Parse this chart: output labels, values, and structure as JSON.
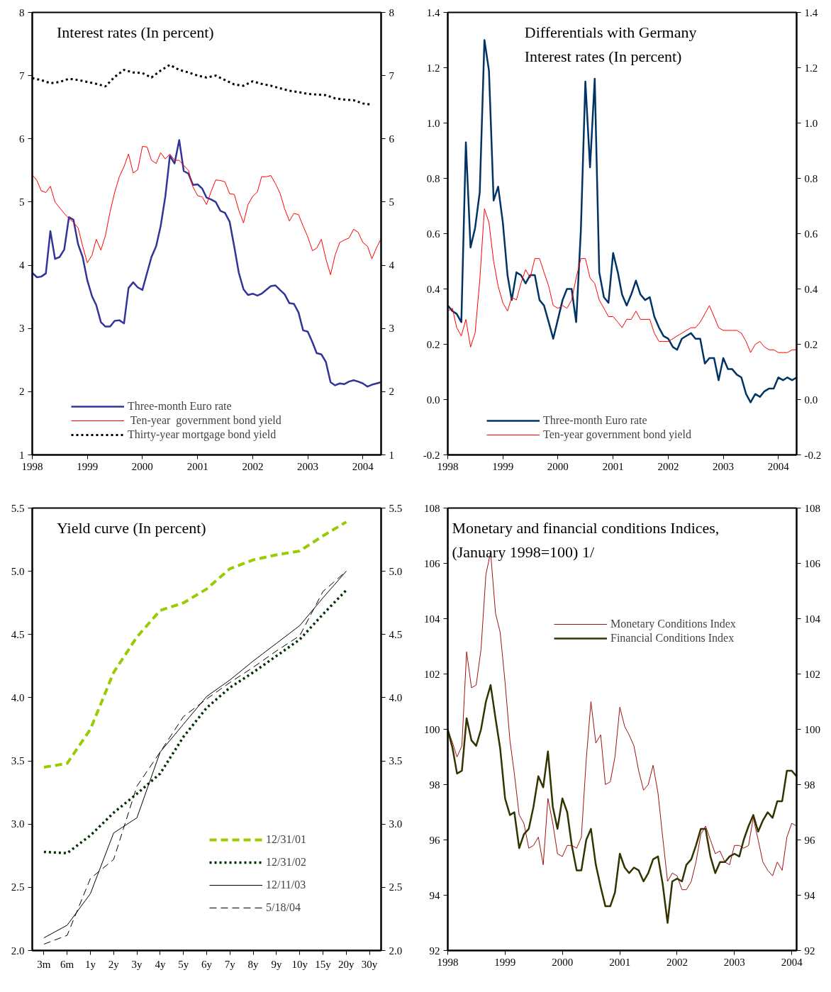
{
  "chart_data": [
    {
      "type": "line",
      "title": "Interest rates  (In percent)",
      "legend": "bottom",
      "x": [
        "1998-01",
        "1998-02",
        "1998-03",
        "1998-04",
        "1998-05",
        "1998-06",
        "1998-07",
        "1998-08",
        "1998-09",
        "1998-10",
        "1998-11",
        "1998-12",
        "1999-01",
        "1999-02",
        "1999-03",
        "1999-04",
        "1999-05",
        "1999-06",
        "1999-07",
        "1999-08",
        "1999-09",
        "1999-10",
        "1999-11",
        "1999-12",
        "2000-01",
        "2000-02",
        "2000-03",
        "2000-04",
        "2000-05",
        "2000-06",
        "2000-07",
        "2000-08",
        "2000-09",
        "2000-10",
        "2000-11",
        "2000-12",
        "2001-01",
        "2001-02",
        "2001-03",
        "2001-04",
        "2001-05",
        "2001-06",
        "2001-07",
        "2001-08",
        "2001-09",
        "2001-10",
        "2001-11",
        "2001-12",
        "2002-01",
        "2002-02",
        "2002-03",
        "2002-04",
        "2002-05",
        "2002-06",
        "2002-07",
        "2002-08",
        "2002-09",
        "2002-10",
        "2002-11",
        "2002-12",
        "2003-01",
        "2003-02",
        "2003-03",
        "2003-04",
        "2003-05",
        "2003-06",
        "2003-07",
        "2003-08",
        "2003-09",
        "2003-10",
        "2003-11",
        "2003-12",
        "2004-01",
        "2004-02",
        "2004-03",
        "2004-04",
        "2004-05"
      ],
      "series": [
        {
          "name": "Three-month Euro rate",
          "color": "#333399",
          "line_style": "solid",
          "values": [
            3.88,
            3.81,
            3.82,
            3.87,
            4.54,
            4.1,
            4.13,
            4.25,
            4.76,
            4.72,
            4.33,
            4.13,
            3.76,
            3.51,
            3.37,
            3.1,
            3.03,
            3.03,
            3.12,
            3.13,
            3.08,
            3.64,
            3.73,
            3.65,
            3.61,
            3.88,
            4.13,
            4.3,
            4.62,
            5.09,
            5.73,
            5.61,
            5.98,
            5.49,
            5.45,
            5.27,
            5.28,
            5.21,
            5.07,
            5.04,
            5.0,
            4.86,
            4.83,
            4.69,
            4.29,
            3.88,
            3.62,
            3.53,
            3.55,
            3.52,
            3.55,
            3.61,
            3.67,
            3.68,
            3.61,
            3.54,
            3.4,
            3.39,
            3.25,
            2.97,
            2.95,
            2.78,
            2.61,
            2.59,
            2.47,
            2.15,
            2.1,
            2.13,
            2.12,
            2.16,
            2.18,
            2.16,
            2.13,
            2.08,
            2.11,
            2.13,
            2.15
          ]
        },
        {
          "name": " Ten-year  government bond yield",
          "color": "#ff0000",
          "line_style": "solid",
          "values": [
            5.43,
            5.34,
            5.18,
            5.15,
            5.25,
            5.0,
            4.91,
            4.82,
            4.74,
            4.68,
            4.59,
            4.3,
            4.04,
            4.16,
            4.41,
            4.24,
            4.47,
            4.85,
            5.15,
            5.4,
            5.56,
            5.76,
            5.46,
            5.51,
            5.88,
            5.87,
            5.66,
            5.61,
            5.78,
            5.68,
            5.76,
            5.66,
            5.66,
            5.58,
            5.5,
            5.24,
            5.1,
            5.08,
            4.96,
            5.17,
            5.35,
            5.34,
            5.32,
            5.13,
            5.12,
            4.87,
            4.67,
            4.96,
            5.09,
            5.16,
            5.4,
            5.4,
            5.42,
            5.29,
            5.14,
            4.89,
            4.7,
            4.82,
            4.8,
            4.62,
            4.45,
            4.23,
            4.27,
            4.41,
            4.1,
            3.85,
            4.16,
            4.36,
            4.4,
            4.43,
            4.57,
            4.52,
            4.36,
            4.3,
            4.1,
            4.28,
            4.42
          ]
        },
        {
          "name": "Thirty-year mortgage bond yield",
          "color": "#000000",
          "line_style": "dotted",
          "x": [
            "1998-01",
            "1998-03",
            "1998-05",
            "1998-07",
            "1998-09",
            "1998-11",
            "1999-01",
            "1999-03",
            "1999-05",
            "1999-07",
            "1999-09",
            "1999-11",
            "2000-01",
            "2000-03",
            "2000-05",
            "2000-07",
            "2000-09",
            "2000-11",
            "2001-01",
            "2001-03",
            "2001-05",
            "2001-07",
            "2001-09",
            "2001-11",
            "2002-01",
            "2002-03",
            "2002-05",
            "2002-07",
            "2002-09",
            "2002-11",
            "2003-01",
            "2003-03",
            "2003-05",
            "2003-07",
            "2003-09",
            "2003-11",
            "2004-01",
            "2004-03"
          ],
          "values": [
            6.96,
            6.93,
            6.88,
            6.9,
            6.95,
            6.93,
            6.9,
            6.87,
            6.83,
            6.98,
            7.09,
            7.05,
            7.04,
            6.97,
            7.08,
            7.17,
            7.09,
            7.05,
            7.0,
            6.97,
            7.0,
            6.93,
            6.86,
            6.84,
            6.91,
            6.87,
            6.84,
            6.8,
            6.76,
            6.74,
            6.71,
            6.7,
            6.69,
            6.64,
            6.62,
            6.61,
            6.56,
            6.54
          ]
        }
      ],
      "xlim": [
        "1998-01",
        "2004-05"
      ],
      "xticks": [
        "1998",
        "1999",
        "2000",
        "2001",
        "2002",
        "2003",
        "2004"
      ],
      "ylim": [
        1,
        8
      ],
      "yticks": [
        1,
        2,
        3,
        4,
        5,
        6,
        7,
        8
      ],
      "y2lim": [
        1,
        8
      ],
      "y2ticks": [
        1,
        2,
        3,
        4,
        5,
        6,
        7,
        8
      ]
    },
    {
      "type": "line",
      "title": "Differentials with Germany",
      "subtitle": "Interest rates (In percent)",
      "legend": "bottom",
      "x": [
        "1998-01",
        "1998-02",
        "1998-03",
        "1998-04",
        "1998-05",
        "1998-06",
        "1998-07",
        "1998-08",
        "1998-09",
        "1998-10",
        "1998-11",
        "1998-12",
        "1999-01",
        "1999-02",
        "1999-03",
        "1999-04",
        "1999-05",
        "1999-06",
        "1999-07",
        "1999-08",
        "1999-09",
        "1999-10",
        "1999-11",
        "1999-12",
        "2000-01",
        "2000-02",
        "2000-03",
        "2000-04",
        "2000-05",
        "2000-06",
        "2000-07",
        "2000-08",
        "2000-09",
        "2000-10",
        "2000-11",
        "2000-12",
        "2001-01",
        "2001-02",
        "2001-03",
        "2001-04",
        "2001-05",
        "2001-06",
        "2001-07",
        "2001-08",
        "2001-09",
        "2001-10",
        "2001-11",
        "2001-12",
        "2002-01",
        "2002-02",
        "2002-03",
        "2002-04",
        "2002-05",
        "2002-06",
        "2002-07",
        "2002-08",
        "2002-09",
        "2002-10",
        "2002-11",
        "2002-12",
        "2003-01",
        "2003-02",
        "2003-03",
        "2003-04",
        "2003-05",
        "2003-06",
        "2003-07",
        "2003-08",
        "2003-09",
        "2003-10",
        "2003-11",
        "2003-12",
        "2004-01",
        "2004-02",
        "2004-03",
        "2004-04",
        "2004-05"
      ],
      "series": [
        {
          "name": "Three-month Euro rate",
          "color": "#003366",
          "line_style": "solid",
          "values": [
            0.34,
            0.32,
            0.31,
            0.28,
            0.93,
            0.55,
            0.62,
            0.75,
            1.3,
            1.19,
            0.72,
            0.77,
            0.64,
            0.45,
            0.36,
            0.46,
            0.45,
            0.42,
            0.45,
            0.45,
            0.36,
            0.34,
            0.28,
            0.22,
            0.29,
            0.36,
            0.4,
            0.4,
            0.28,
            0.61,
            1.15,
            0.84,
            1.16,
            0.46,
            0.37,
            0.35,
            0.53,
            0.46,
            0.38,
            0.34,
            0.38,
            0.43,
            0.38,
            0.36,
            0.37,
            0.3,
            0.26,
            0.23,
            0.22,
            0.19,
            0.18,
            0.22,
            0.23,
            0.24,
            0.22,
            0.22,
            0.13,
            0.15,
            0.15,
            0.07,
            0.15,
            0.11,
            0.11,
            0.09,
            0.08,
            0.02,
            -0.01,
            0.02,
            0.01,
            0.03,
            0.04,
            0.04,
            0.08,
            0.07,
            0.08,
            0.07,
            0.08
          ]
        },
        {
          "name": "Ten-year government bond yield",
          "color": "#ff0000",
          "line_style": "solid",
          "values": [
            0.32,
            0.33,
            0.26,
            0.23,
            0.29,
            0.19,
            0.24,
            0.43,
            0.69,
            0.64,
            0.5,
            0.41,
            0.35,
            0.32,
            0.37,
            0.36,
            0.42,
            0.47,
            0.44,
            0.51,
            0.51,
            0.46,
            0.41,
            0.34,
            0.33,
            0.34,
            0.33,
            0.36,
            0.44,
            0.51,
            0.51,
            0.44,
            0.42,
            0.36,
            0.33,
            0.3,
            0.3,
            0.28,
            0.26,
            0.29,
            0.29,
            0.32,
            0.29,
            0.29,
            0.29,
            0.24,
            0.21,
            0.21,
            0.21,
            0.22,
            0.23,
            0.24,
            0.25,
            0.26,
            0.26,
            0.28,
            0.31,
            0.34,
            0.3,
            0.26,
            0.25,
            0.25,
            0.25,
            0.25,
            0.24,
            0.21,
            0.17,
            0.2,
            0.21,
            0.19,
            0.18,
            0.18,
            0.17,
            0.17,
            0.17,
            0.18,
            0.18
          ]
        }
      ],
      "xlim": [
        "1998-01",
        "2004-05"
      ],
      "xticks": [
        "1998",
        "1999",
        "2000",
        "2001",
        "2002",
        "2003",
        "2004"
      ],
      "ylim": [
        -0.2,
        1.4
      ],
      "yticks": [
        {
          "value": -0.2,
          "label": "-0.2"
        },
        {
          "value": 0,
          "label": "0.0"
        },
        0.2,
        0.4,
        0.6,
        0.8,
        {
          "value": 1,
          "label": "1.0"
        },
        1.2,
        1.4
      ],
      "y2lim": [
        -0.2,
        1.4
      ],
      "y2ticks": [
        {
          "value": -0.2,
          "label": "-0.2"
        },
        {
          "value": 0,
          "label": "0.0"
        },
        0.2,
        0.4,
        0.6,
        0.8,
        {
          "value": 1,
          "label": "1.0"
        },
        1.2,
        1.4
      ]
    },
    {
      "type": "line",
      "title": "Yield curve (In percent)",
      "legend": "bottom right",
      "categories": [
        "3m",
        "6m",
        "1y",
        "2y",
        "3y",
        "4y",
        "5y",
        "6y",
        "7y",
        "8y",
        "9y",
        "10y",
        "15y",
        "20y",
        "30y"
      ],
      "series": [
        {
          "name": "12/31/01",
          "color": "#99cc00",
          "line_style": "dashed",
          "values": [
            3.45,
            3.48,
            3.75,
            4.2,
            4.48,
            4.69,
            4.75,
            4.86,
            5.02,
            5.09,
            5.13,
            5.16,
            5.28,
            5.39,
            null
          ]
        },
        {
          "name": "12/31/02",
          "color": "#003300",
          "line_style": "dotted",
          "values": [
            2.78,
            2.77,
            2.91,
            3.09,
            3.24,
            3.4,
            3.69,
            3.92,
            4.08,
            4.2,
            4.33,
            4.46,
            4.66,
            4.85,
            null
          ]
        },
        {
          "name": "12/11/03",
          "color": "#000000",
          "line_style": "solid",
          "values": [
            2.1,
            2.2,
            2.45,
            2.93,
            3.05,
            3.57,
            3.79,
            4.01,
            4.14,
            4.29,
            4.43,
            4.57,
            4.79,
            5.0,
            null
          ]
        },
        {
          "name": "5/18/04",
          "color": "#000000",
          "line_style": "dashed",
          "values": [
            2.05,
            2.12,
            2.57,
            2.72,
            3.3,
            3.57,
            3.85,
            3.99,
            4.12,
            4.24,
            4.37,
            4.49,
            4.84,
            5.0,
            null
          ]
        }
      ],
      "ylim": [
        2.0,
        5.5
      ],
      "yticks": [
        {
          "value": 2,
          "label": "2.0"
        },
        2.5,
        {
          "value": 3,
          "label": "3.0"
        },
        3.5,
        {
          "value": 4,
          "label": "4.0"
        },
        4.5,
        {
          "value": 5,
          "label": "5.0"
        },
        5.5
      ],
      "y2lim": [
        2.0,
        5.5
      ],
      "y2ticks": [
        {
          "value": 2,
          "label": "2.0"
        },
        2.5,
        {
          "value": 3,
          "label": "3.0"
        },
        3.5,
        {
          "value": 4,
          "label": "4.0"
        },
        4.5,
        {
          "value": 5,
          "label": "5.0"
        },
        5.5
      ]
    },
    {
      "type": "line",
      "title": "Monetary and financial conditions Indices,",
      "subtitle": "(January 1998=100) 1/",
      "legend": "top right",
      "x": [
        "1998-01",
        "1998-02",
        "1998-03",
        "1998-04",
        "1998-05",
        "1998-06",
        "1998-07",
        "1998-08",
        "1998-09",
        "1998-10",
        "1998-11",
        "1998-12",
        "1999-01",
        "1999-02",
        "1999-03",
        "1999-04",
        "1999-05",
        "1999-06",
        "1999-07",
        "1999-08",
        "1999-09",
        "1999-10",
        "1999-11",
        "1999-12",
        "2000-01",
        "2000-02",
        "2000-03",
        "2000-04",
        "2000-05",
        "2000-06",
        "2000-07",
        "2000-08",
        "2000-09",
        "2000-10",
        "2000-11",
        "2000-12",
        "2001-01",
        "2001-02",
        "2001-03",
        "2001-04",
        "2001-05",
        "2001-06",
        "2001-07",
        "2001-08",
        "2001-09",
        "2001-10",
        "2001-11",
        "2001-12",
        "2002-01",
        "2002-02",
        "2002-03",
        "2002-04",
        "2002-05",
        "2002-06",
        "2002-07",
        "2002-08",
        "2002-09",
        "2002-10",
        "2002-11",
        "2002-12",
        "2003-01",
        "2003-02",
        "2003-03",
        "2003-04",
        "2003-05",
        "2003-06",
        "2003-07",
        "2003-08",
        "2003-09",
        "2003-10",
        "2003-11",
        "2003-12",
        "2004-01",
        "2004-02"
      ],
      "series": [
        {
          "name": "Monetary Conditions Index",
          "color": "#a01010",
          "line_style": "solid",
          "values": [
            100.0,
            99.5,
            99.0,
            99.4,
            102.8,
            101.5,
            101.6,
            102.9,
            105.6,
            106.4,
            104.2,
            103.5,
            101.7,
            99.6,
            98.4,
            96.9,
            96.6,
            95.7,
            95.8,
            96.1,
            95.1,
            97.5,
            96.6,
            95.5,
            95.4,
            95.8,
            95.8,
            95.7,
            96.1,
            98.9,
            101.0,
            99.5,
            99.8,
            98.0,
            98.1,
            99.0,
            100.8,
            100.1,
            99.8,
            99.4,
            98.5,
            97.8,
            98.0,
            98.7,
            97.7,
            96.1,
            94.5,
            94.8,
            94.7,
            94.2,
            94.2,
            94.5,
            95.2,
            96.2,
            96.5,
            96.0,
            95.5,
            95.6,
            95.2,
            95.1,
            95.8,
            95.8,
            95.7,
            95.8,
            96.8,
            96.0,
            95.2,
            94.9,
            94.7,
            95.2,
            94.9,
            96.1,
            96.6,
            96.5
          ]
        },
        {
          "name": "Financial Conditions Index",
          "color": "#333300",
          "line_style": "solid",
          "values": [
            100.0,
            99.3,
            98.4,
            98.5,
            100.4,
            99.6,
            99.4,
            100.0,
            101.0,
            101.6,
            100.4,
            99.3,
            97.5,
            96.9,
            97.0,
            95.7,
            96.2,
            96.4,
            97.2,
            98.3,
            97.9,
            99.2,
            97.2,
            96.4,
            97.5,
            97.0,
            95.8,
            94.9,
            94.9,
            96.0,
            96.4,
            95.1,
            94.3,
            93.6,
            93.6,
            94.1,
            95.5,
            95.0,
            94.8,
            95.0,
            94.9,
            94.5,
            94.8,
            95.3,
            95.4,
            94.4,
            93.0,
            94.5,
            94.6,
            94.5,
            95.1,
            95.3,
            95.8,
            96.4,
            96.4,
            95.4,
            94.8,
            95.2,
            95.2,
            95.4,
            95.5,
            95.4,
            96.0,
            96.5,
            96.9,
            96.3,
            96.7,
            97.0,
            96.8,
            97.4,
            97.4,
            98.5,
            98.5,
            98.3
          ]
        }
      ],
      "xlim": [
        "1998-01",
        "2004-02"
      ],
      "xticks": [
        "1998",
        "1999",
        "2000",
        "2001",
        "2002",
        "2003",
        "2004"
      ],
      "ylim": [
        92,
        108
      ],
      "yticks": [
        92,
        94,
        96,
        98,
        100,
        102,
        104,
        106,
        108
      ],
      "y2lim": [
        92,
        108
      ],
      "y2ticks": [
        92,
        94,
        96,
        98,
        100,
        102,
        104,
        106,
        108
      ]
    }
  ]
}
